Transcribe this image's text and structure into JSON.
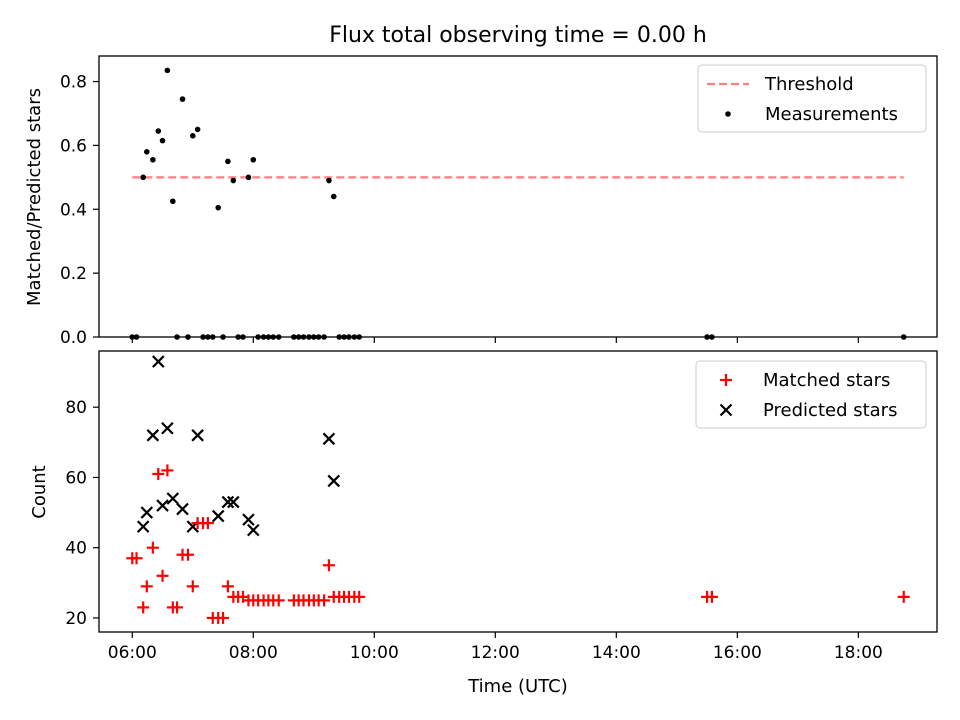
{
  "title": "Flux total observing time = 0.00 h",
  "colors": {
    "threshold": "#ff7f7f",
    "measurements": "#000000",
    "matched": "#ff0000",
    "predicted": "#000000"
  },
  "chart_data": [
    {
      "type": "scatter",
      "panel": "top",
      "ylabel": "Matched/Predicted stars",
      "xlabel": "",
      "x_unit": "hours (UTC)",
      "xlim": [
        5.45,
        19.3
      ],
      "ylim": [
        0,
        0.88
      ],
      "yticks": [
        0.0,
        0.2,
        0.4,
        0.6,
        0.8
      ],
      "ytick_labels": [
        "0.0",
        "0.2",
        "0.4",
        "0.6",
        "0.8"
      ],
      "legend_position": "top-right",
      "series": [
        {
          "name": "Threshold",
          "style": "dashed-line",
          "x": [
            6.0,
            18.75
          ],
          "y": [
            0.5,
            0.5
          ]
        },
        {
          "name": "Measurements",
          "style": "dot",
          "x": [
            6.0,
            6.07,
            6.18,
            6.24,
            6.34,
            6.43,
            6.5,
            6.58,
            6.67,
            6.74,
            6.83,
            6.92,
            7.0,
            7.08,
            7.17,
            7.25,
            7.33,
            7.42,
            7.5,
            7.58,
            7.67,
            7.75,
            7.83,
            7.92,
            8.0,
            8.08,
            8.17,
            8.25,
            8.33,
            8.42,
            8.67,
            8.75,
            8.83,
            8.92,
            9.0,
            9.08,
            9.17,
            9.25,
            9.33,
            9.42,
            9.5,
            9.58,
            9.67,
            9.75,
            15.5,
            15.58,
            18.75
          ],
          "y": [
            0,
            0,
            0.5,
            0.58,
            0.555,
            0.645,
            0.615,
            0.835,
            0.425,
            0,
            0.745,
            0,
            0.63,
            0.65,
            0,
            0,
            0,
            0.405,
            0,
            0.55,
            0.49,
            0,
            0,
            0.5,
            0.555,
            0,
            0,
            0,
            0,
            0,
            0,
            0,
            0,
            0,
            0,
            0,
            0,
            0.49,
            0.44,
            0,
            0,
            0,
            0,
            0,
            0,
            0,
            0
          ]
        }
      ]
    },
    {
      "type": "scatter",
      "panel": "bottom",
      "xlabel": "Time (UTC)",
      "ylabel": "Count",
      "x_unit": "hours (UTC)",
      "xlim": [
        5.45,
        19.3
      ],
      "ylim": [
        16,
        96
      ],
      "xticks": [
        6,
        8,
        10,
        12,
        14,
        16,
        18
      ],
      "xtick_labels": [
        "06:00",
        "08:00",
        "10:00",
        "12:00",
        "14:00",
        "16:00",
        "18:00"
      ],
      "yticks": [
        20,
        40,
        60,
        80
      ],
      "ytick_labels": [
        "20",
        "40",
        "60",
        "80"
      ],
      "legend_position": "top-right",
      "series": [
        {
          "name": "Matched stars",
          "marker": "plus",
          "x": [
            6.0,
            6.07,
            6.18,
            6.24,
            6.34,
            6.43,
            6.5,
            6.58,
            6.67,
            6.74,
            6.83,
            6.92,
            7.0,
            7.08,
            7.17,
            7.25,
            7.33,
            7.42,
            7.5,
            7.58,
            7.67,
            7.75,
            7.83,
            7.92,
            8.0,
            8.08,
            8.17,
            8.25,
            8.33,
            8.42,
            8.67,
            8.75,
            8.83,
            8.92,
            9.0,
            9.08,
            9.17,
            9.25,
            9.33,
            9.42,
            9.5,
            9.58,
            9.67,
            9.75,
            15.5,
            15.58,
            18.75
          ],
          "y": [
            37,
            37,
            23,
            29,
            40,
            61,
            32,
            62,
            23,
            23,
            38,
            38,
            29,
            47,
            47,
            47,
            20,
            20,
            20,
            29,
            26,
            26,
            26,
            25,
            25,
            25,
            25,
            25,
            25,
            25,
            25,
            25,
            25,
            25,
            25,
            25,
            25,
            35,
            26,
            26,
            26,
            26,
            26,
            26,
            26,
            26,
            26
          ]
        },
        {
          "name": "Predicted stars",
          "marker": "x",
          "x": [
            6.18,
            6.24,
            6.34,
            6.43,
            6.5,
            6.58,
            6.67,
            6.83,
            7.0,
            7.08,
            7.42,
            7.58,
            7.67,
            7.92,
            8.0,
            9.25,
            9.33
          ],
          "y": [
            46,
            50,
            72,
            93,
            52,
            74,
            54,
            51,
            46,
            72,
            49,
            53,
            53,
            48,
            45,
            71,
            59
          ]
        }
      ]
    }
  ]
}
